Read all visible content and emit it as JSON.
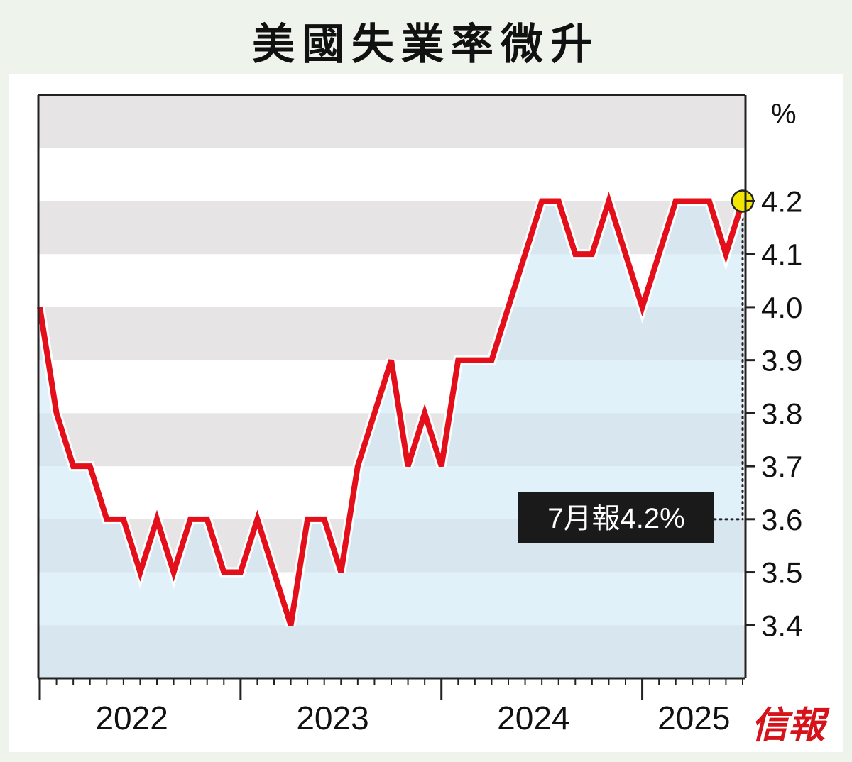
{
  "title": "美國失業率微升",
  "logo": "信報",
  "chart_data": {
    "type": "line",
    "title": "美國失業率微升",
    "ylabel": "%",
    "ylim": [
      3.3,
      4.4
    ],
    "yticks": [
      3.4,
      3.5,
      3.6,
      3.7,
      3.8,
      3.9,
      4.0,
      4.1,
      4.2
    ],
    "ytick_labels": [
      "3.4",
      "3.5",
      "3.6",
      "3.7",
      "3.8",
      "3.9",
      "4.0",
      "4.1",
      "4.2"
    ],
    "year_labels": [
      "2022",
      "2023",
      "2024",
      "2025"
    ],
    "x_start": "2022-01",
    "x_end": "2025-07",
    "values": [
      4.0,
      3.8,
      3.7,
      3.7,
      3.6,
      3.6,
      3.5,
      3.6,
      3.5,
      3.6,
      3.6,
      3.5,
      3.5,
      3.6,
      3.5,
      3.4,
      3.6,
      3.6,
      3.5,
      3.7,
      3.8,
      3.9,
      3.7,
      3.8,
      3.7,
      3.9,
      3.9,
      3.9,
      4.0,
      4.1,
      4.2,
      4.2,
      4.1,
      4.1,
      4.2,
      4.1,
      4.0,
      4.1,
      4.2,
      4.2,
      4.2,
      4.1,
      4.2
    ],
    "line_color": "#e3101c",
    "highlight_color": "#f2e600",
    "grid": "alternating horizontal bands",
    "annotation": {
      "text": "7月報4.2%",
      "point_index": 42
    }
  }
}
